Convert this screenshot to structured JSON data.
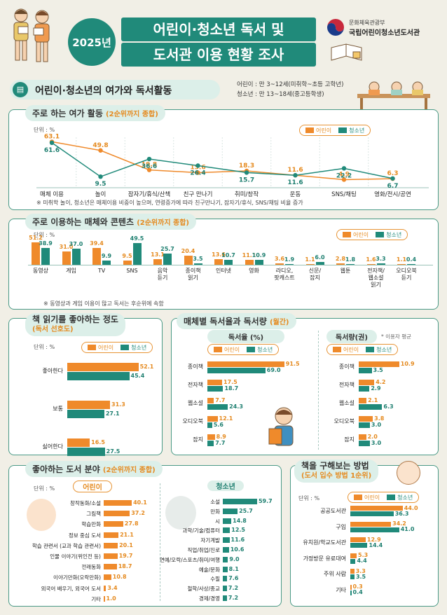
{
  "header": {
    "year": "2025년",
    "title_line1": "어린이·청소년 독서 및",
    "title_line2": "도서관 이용 현황 조사",
    "org_ministry": "문화체육관광부",
    "org_library": "국립어린이청소년도서관"
  },
  "banner": {
    "title": "어린이·청소년의 여가와 독서활동",
    "def_child": "어린이 : 만 3~12세(미취학~초등 고학년)",
    "def_teen": "청소년 : 만 13~18세(중고등학생)"
  },
  "legend": {
    "child": "어린이",
    "teen": "청소년"
  },
  "unit_percent": "단위 : %",
  "unit_books": "단위 : 권",
  "user_avg": "* 이용자 평균",
  "chart_data": [
    {
      "id": "leisure",
      "type": "line",
      "title": "주로 하는 여가 활동",
      "subtitle": "(2순위까지 종합)",
      "categories": [
        "매체 이용",
        "놀이",
        "잠자기/휴식/산책",
        "친구 만나기",
        "취미/창작",
        "운동",
        "SNS/채팅",
        "영화/전시/공연"
      ],
      "series": [
        {
          "name": "어린이",
          "values": [
            63.1,
            49.8,
            19.8,
            15.6,
            18.3,
            11.6,
            4.9,
            6.3
          ]
        },
        {
          "name": "청소년",
          "values": [
            61.6,
            9.5,
            36.6,
            26.4,
            15.7,
            11.6,
            22.2,
            6.7
          ]
        }
      ],
      "note": "※ 미취학 놀이, 청소년은 매체이용 비중이 높으며, 연령증가에 따라 친구만나기, 잠자기/휴식, SNS/채팅 비율 증가"
    },
    {
      "id": "media",
      "type": "bar",
      "title": "주로 이용하는 매체와 콘텐츠",
      "subtitle": "(2순위까지 종합)",
      "categories": [
        "동영상",
        "게임",
        "TV",
        "SNS",
        "음악 듣기",
        "종이책 읽기",
        "인터넷",
        "영화",
        "라디오, 팟캐스트",
        "신문/ 잡지",
        "웹툰",
        "전자책/ 웹소설 읽기",
        "오디오북 듣기"
      ],
      "series": [
        {
          "name": "어린이",
          "values": [
            51.2,
            31.0,
            39.4,
            9.5,
            13.1,
            20.4,
            13.6,
            11.1,
            3.6,
            1.1,
            2.8,
            1.6,
            1.1
          ]
        },
        {
          "name": "청소년",
          "values": [
            38.9,
            37.0,
            9.9,
            49.5,
            25.7,
            3.5,
            10.7,
            10.9,
            1.9,
            6.0,
            1.8,
            3.3,
            0.4
          ]
        }
      ],
      "note": "※ 동영상과 게임 이용이 많고 독서는 후순위에 속함"
    },
    {
      "id": "preference",
      "type": "bar",
      "title": "책 읽기를 좋아하는 정도",
      "subtitle": "(독서 선호도)",
      "categories": [
        "좋아한다",
        "보통",
        "싫어한다"
      ],
      "series": [
        {
          "name": "어린이",
          "values": [
            52.1,
            31.3,
            16.5
          ]
        },
        {
          "name": "청소년",
          "values": [
            45.4,
            27.1,
            27.5
          ]
        }
      ]
    },
    {
      "id": "rate",
      "type": "bar",
      "title": "매체별 독서율과 독서량",
      "subtitle": "(월간)",
      "panel_title": "독서율 (%)",
      "categories": [
        "종이책",
        "전자책",
        "웹소설",
        "오디오북",
        "잡지"
      ],
      "series": [
        {
          "name": "어린이",
          "values": [
            91.5,
            17.5,
            7.7,
            12.1,
            8.9
          ]
        },
        {
          "name": "청소년",
          "values": [
            69.0,
            18.7,
            24.3,
            5.6,
            7.7
          ]
        }
      ]
    },
    {
      "id": "volume",
      "type": "bar",
      "panel_title": "독서량(권)",
      "categories": [
        "종이책",
        "전자책",
        "웹소설",
        "오디오북",
        "잡지"
      ],
      "series": [
        {
          "name": "어린이",
          "values": [
            10.9,
            4.2,
            2.1,
            3.8,
            2.0
          ]
        },
        {
          "name": "청소년",
          "values": [
            3.5,
            2.9,
            6.3,
            3.0,
            3.0
          ]
        }
      ]
    },
    {
      "id": "genre_child",
      "type": "bar",
      "title": "좋아하는 도서 분야",
      "subtitle": "(2순위까지 종합)",
      "panel_title": "어린이",
      "categories": [
        "창작동화/소설",
        "그림책",
        "학습만화",
        "정보 중심 도서",
        "학습 관련서 (교과 학습 관련서)",
        "인물 이야기(위인전 등)",
        "전래동화",
        "이야기만화(오락만화)",
        "외국어 배우기, 외국어 도서",
        "기타"
      ],
      "values": [
        40.1,
        37.2,
        27.8,
        21.1,
        20.1,
        19.7,
        18.7,
        10.8,
        3.4,
        1.0
      ]
    },
    {
      "id": "genre_teen",
      "type": "bar",
      "panel_title": "청소년",
      "categories": [
        "소설",
        "만화",
        "시",
        "과학/기술/컴퓨터",
        "자기계발",
        "직업/취업/진로",
        "연예/오락/스포츠/취미/여행",
        "예술/문화",
        "수필",
        "철학/사상/종교",
        "경제/경영"
      ],
      "values": [
        59.7,
        25.7,
        14.8,
        12.5,
        11.6,
        10.6,
        9.0,
        8.1,
        7.6,
        7.2,
        7.2
      ]
    },
    {
      "id": "acquire",
      "type": "bar",
      "title": "책을 구해보는 방법",
      "subtitle": "(도서 입수 방법 1순위)",
      "categories": [
        "공공도서관",
        "구입",
        "유치원/학교도서관",
        "가정방문 유료대여",
        "주위 사람",
        "기타"
      ],
      "series": [
        {
          "name": "어린이",
          "values": [
            44.0,
            34.2,
            12.9,
            5.3,
            3.3,
            0.3
          ]
        },
        {
          "name": "청소년",
          "values": [
            36.3,
            41.0,
            14.4,
            4.4,
            3.5,
            0.4
          ]
        }
      ]
    }
  ]
}
